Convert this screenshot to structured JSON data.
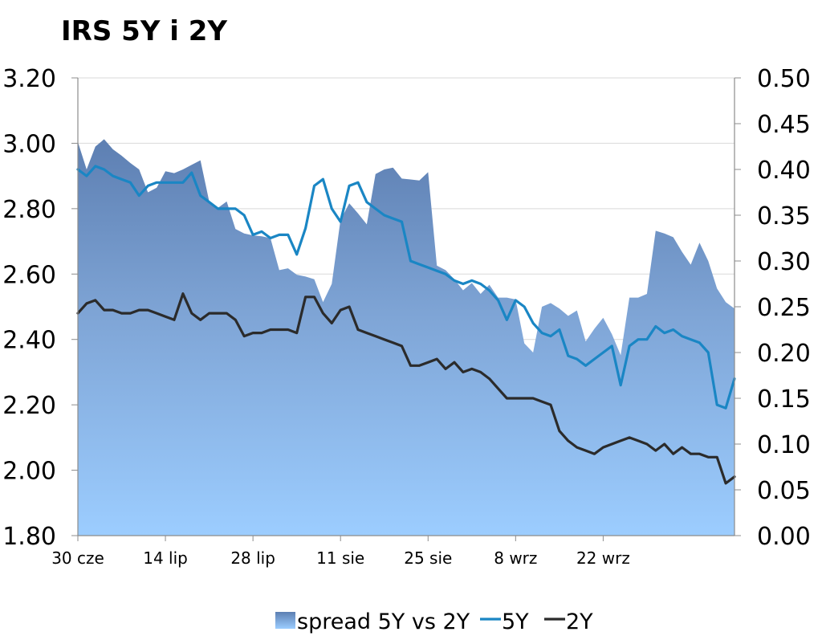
{
  "chart_data": {
    "type": "line",
    "title": "IRS 5Y i 2Y",
    "x_tick_labels": [
      "30 cze",
      "14 lip",
      "28 lip",
      "11 sie",
      "25 sie",
      "8 wrz",
      "22 wrz"
    ],
    "y_left": {
      "ylim": [
        1.8,
        3.2
      ],
      "ticks": [
        "1.80",
        "2.00",
        "2.20",
        "2.40",
        "2.60",
        "2.80",
        "3.00",
        "3.20"
      ]
    },
    "y_right": {
      "ylim": [
        0.0,
        0.5
      ],
      "ticks": [
        "0.00",
        "0.05",
        "0.10",
        "0.15",
        "0.20",
        "0.25",
        "0.30",
        "0.35",
        "0.40",
        "0.45",
        "0.50"
      ]
    },
    "x_range": [
      0,
      75
    ],
    "grid": true,
    "legend_position": "bottom",
    "series": [
      {
        "name": "spread 5Y vs 2Y",
        "kind": "area",
        "axis": "right",
        "color": "#6f93c6",
        "x": [
          0,
          1,
          2,
          3,
          4,
          5,
          6,
          7,
          8,
          9,
          10,
          11,
          12,
          13,
          14,
          15,
          16,
          17,
          18,
          19,
          20,
          21,
          22,
          23,
          24,
          25,
          26,
          27,
          28,
          29,
          30,
          31,
          32,
          33,
          34,
          35,
          36,
          37,
          38,
          39,
          40,
          41,
          42,
          43,
          44,
          45,
          46,
          47,
          48,
          49,
          50,
          51,
          52,
          53,
          54,
          55,
          56,
          57,
          58,
          59,
          60,
          61,
          62,
          63,
          64,
          65,
          66,
          67,
          68,
          69,
          70,
          71,
          72,
          73,
          74,
          75
        ],
        "values": [
          0.43,
          0.4,
          0.425,
          0.433,
          0.422,
          0.415,
          0.407,
          0.4,
          0.375,
          0.38,
          0.398,
          0.396,
          0.4,
          0.405,
          0.41,
          0.365,
          0.358,
          0.365,
          0.335,
          0.33,
          0.328,
          0.327,
          0.325,
          0.29,
          0.292,
          0.285,
          0.283,
          0.28,
          0.255,
          0.275,
          0.345,
          0.363,
          0.352,
          0.34,
          0.395,
          0.4,
          0.402,
          0.39,
          0.389,
          0.388,
          0.397,
          0.295,
          0.29,
          0.28,
          0.268,
          0.276,
          0.264,
          0.274,
          0.26,
          0.26,
          0.258,
          0.21,
          0.2,
          0.25,
          0.254,
          0.248,
          0.24,
          0.246,
          0.212,
          0.226,
          0.238,
          0.22,
          0.197,
          0.26,
          0.26,
          0.264,
          0.333,
          0.33,
          0.326,
          0.31,
          0.296,
          0.32,
          0.3,
          0.27,
          0.255,
          0.248
        ]
      },
      {
        "name": "5Y",
        "kind": "line",
        "axis": "left",
        "color": "#1a86c4",
        "x": [
          0,
          1,
          2,
          3,
          4,
          5,
          6,
          7,
          8,
          9,
          10,
          11,
          12,
          13,
          14,
          15,
          16,
          17,
          18,
          19,
          20,
          21,
          22,
          23,
          24,
          25,
          26,
          27,
          28,
          29,
          30,
          31,
          32,
          33,
          34,
          35,
          36,
          37,
          38,
          39,
          40,
          41,
          42,
          43,
          44,
          45,
          46,
          47,
          48,
          49,
          50,
          51,
          52,
          53,
          54,
          55,
          56,
          57,
          58,
          59,
          60,
          61,
          62,
          63,
          64,
          65,
          66,
          67,
          68,
          69,
          70,
          71,
          72,
          73,
          74,
          75
        ],
        "values": [
          2.92,
          2.9,
          2.93,
          2.92,
          2.9,
          2.89,
          2.88,
          2.84,
          2.87,
          2.88,
          2.88,
          2.88,
          2.88,
          2.91,
          2.84,
          2.82,
          2.8,
          2.8,
          2.8,
          2.78,
          2.72,
          2.73,
          2.71,
          2.72,
          2.72,
          2.66,
          2.74,
          2.87,
          2.89,
          2.8,
          2.76,
          2.87,
          2.88,
          2.82,
          2.8,
          2.78,
          2.77,
          2.76,
          2.64,
          2.63,
          2.62,
          2.61,
          2.6,
          2.58,
          2.57,
          2.58,
          2.57,
          2.55,
          2.52,
          2.46,
          2.52,
          2.5,
          2.45,
          2.42,
          2.41,
          2.43,
          2.35,
          2.34,
          2.32,
          2.34,
          2.36,
          2.38,
          2.26,
          2.38,
          2.4,
          2.4,
          2.44,
          2.42,
          2.43,
          2.41,
          2.4,
          2.39,
          2.36,
          2.2,
          2.19,
          2.28
        ]
      },
      {
        "name": "2Y",
        "kind": "line",
        "axis": "left",
        "color": "#2b2b2b",
        "x": [
          0,
          1,
          2,
          3,
          4,
          5,
          6,
          7,
          8,
          9,
          10,
          11,
          12,
          13,
          14,
          15,
          16,
          17,
          18,
          19,
          20,
          21,
          22,
          23,
          24,
          25,
          26,
          27,
          28,
          29,
          30,
          31,
          32,
          33,
          34,
          35,
          36,
          37,
          38,
          39,
          40,
          41,
          42,
          43,
          44,
          45,
          46,
          47,
          48,
          49,
          50,
          51,
          52,
          53,
          54,
          55,
          56,
          57,
          58,
          59,
          60,
          61,
          62,
          63,
          64,
          65,
          66,
          67,
          68,
          69,
          70,
          71,
          72,
          73,
          74,
          75
        ],
        "values": [
          2.48,
          2.51,
          2.52,
          2.49,
          2.49,
          2.48,
          2.48,
          2.49,
          2.49,
          2.48,
          2.47,
          2.46,
          2.54,
          2.48,
          2.46,
          2.48,
          2.48,
          2.48,
          2.46,
          2.41,
          2.42,
          2.42,
          2.43,
          2.43,
          2.43,
          2.42,
          2.53,
          2.53,
          2.48,
          2.45,
          2.49,
          2.5,
          2.43,
          2.42,
          2.41,
          2.4,
          2.39,
          2.38,
          2.32,
          2.32,
          2.33,
          2.34,
          2.31,
          2.33,
          2.3,
          2.31,
          2.3,
          2.28,
          2.25,
          2.22,
          2.22,
          2.22,
          2.22,
          2.21,
          2.2,
          2.12,
          2.09,
          2.07,
          2.06,
          2.05,
          2.07,
          2.08,
          2.09,
          2.1,
          2.09,
          2.08,
          2.06,
          2.08,
          2.05,
          2.07,
          2.05,
          2.05,
          2.04,
          2.04,
          1.96,
          1.98
        ]
      }
    ]
  }
}
